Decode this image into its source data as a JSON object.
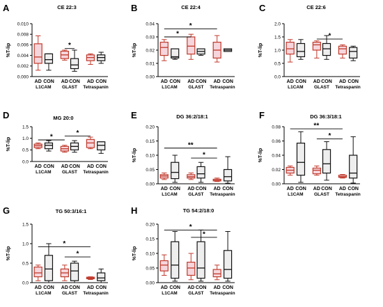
{
  "colors": {
    "ad": "#c0392b",
    "ad_fill": "#f6d6dc",
    "con": "#111111",
    "con_fill": "#eeeeee"
  },
  "chart_data": [
    {
      "panel": "A",
      "type": "box",
      "title": "CE 22:3",
      "ylabel": "%T-lip",
      "yticks": [
        "0.000",
        "0.002",
        "0.004",
        "0.006",
        "0.008",
        "0.010"
      ],
      "ylim": [
        0,
        0.01
      ],
      "xticks": [
        "AD",
        "CON",
        "AD",
        "CON",
        "AD",
        "CON"
      ],
      "groups": [
        "L1CAM",
        "GLAST",
        "Tetraspanin"
      ],
      "boxes": [
        {
          "cond": "AD",
          "min": 0.0012,
          "q1": 0.0025,
          "med": 0.0037,
          "q3": 0.0062,
          "max": 0.0077
        },
        {
          "cond": "CON",
          "min": 0.0012,
          "q1": 0.0025,
          "med": 0.0032,
          "q3": 0.0043,
          "max": 0.0043
        },
        {
          "cond": "AD",
          "min": 0.0031,
          "q1": 0.0034,
          "med": 0.0041,
          "q3": 0.0048,
          "max": 0.005
        },
        {
          "cond": "CON",
          "min": 0.001,
          "q1": 0.0015,
          "med": 0.0022,
          "q3": 0.0034,
          "max": 0.005
        },
        {
          "cond": "AD",
          "min": 0.0023,
          "q1": 0.003,
          "med": 0.0036,
          "q3": 0.0041,
          "max": 0.0043
        },
        {
          "cond": "CON",
          "min": 0.0025,
          "q1": 0.003,
          "med": 0.0036,
          "q3": 0.0041,
          "max": 0.0046
        }
      ],
      "sig": [
        {
          "from": 2,
          "to": 3,
          "label": "*",
          "y": 0.0053
        }
      ]
    },
    {
      "panel": "B",
      "type": "box",
      "title": "CE 22:4",
      "ylabel": "%T-lip",
      "yticks": [
        "0.00",
        "0.01",
        "0.02",
        "0.03",
        "0.04"
      ],
      "ylim": [
        0,
        0.04
      ],
      "xticks": [
        "AD",
        "CON",
        "AD",
        "CON",
        "AD",
        "CON"
      ],
      "groups": [
        "L1CAM",
        "GLAST",
        "Tetraspanin"
      ],
      "boxes": [
        {
          "cond": "AD",
          "min": 0.012,
          "q1": 0.016,
          "med": 0.022,
          "q3": 0.026,
          "max": 0.028
        },
        {
          "cond": "CON",
          "min": 0.013,
          "q1": 0.014,
          "med": 0.015,
          "q3": 0.021,
          "max": 0.021
        },
        {
          "cond": "AD",
          "min": 0.013,
          "q1": 0.017,
          "med": 0.023,
          "q3": 0.03,
          "max": 0.032
        },
        {
          "cond": "CON",
          "min": 0.016,
          "q1": 0.017,
          "med": 0.019,
          "q3": 0.021,
          "max": 0.021
        },
        {
          "cond": "AD",
          "min": 0.011,
          "q1": 0.014,
          "med": 0.02,
          "q3": 0.026,
          "max": 0.031
        },
        {
          "cond": "CON",
          "min": 0.019,
          "q1": 0.019,
          "med": 0.02,
          "q3": 0.021,
          "max": 0.021
        }
      ],
      "sig": [
        {
          "from": 0,
          "to": 2,
          "label": "*",
          "y": 0.03
        },
        {
          "from": 0,
          "to": 4,
          "label": "*",
          "y": 0.036
        }
      ]
    },
    {
      "panel": "C",
      "type": "box",
      "title": "CE 22:6",
      "ylabel": "%T-lip",
      "yticks": [
        "0.0",
        "0.5",
        "1.0",
        "1.5",
        "2.0"
      ],
      "ylim": [
        0,
        2.0
      ],
      "xticks": [
        "AD",
        "CON",
        "AD",
        "CON",
        "AD",
        "CON"
      ],
      "groups": [
        "L1CAM",
        "GLAST",
        "Tetraspanin"
      ],
      "boxes": [
        {
          "cond": "AD",
          "min": 0.55,
          "q1": 0.85,
          "med": 1.05,
          "q3": 1.3,
          "max": 1.4
        },
        {
          "cond": "CON",
          "min": 0.65,
          "q1": 0.75,
          "med": 0.95,
          "q3": 1.25,
          "max": 1.4
        },
        {
          "cond": "AD",
          "min": 0.7,
          "q1": 1.0,
          "med": 1.2,
          "q3": 1.3,
          "max": 1.35
        },
        {
          "cond": "CON",
          "min": 0.65,
          "q1": 0.8,
          "med": 1.05,
          "q3": 1.25,
          "max": 1.55
        },
        {
          "cond": "AD",
          "min": 0.7,
          "q1": 0.85,
          "med": 1.05,
          "q3": 1.15,
          "max": 1.2
        },
        {
          "cond": "CON",
          "min": 0.6,
          "q1": 0.7,
          "med": 0.95,
          "q3": 1.1,
          "max": 1.15
        }
      ],
      "sig": [
        {
          "from": 2,
          "to": 4,
          "label": "*",
          "y": 1.42
        }
      ]
    },
    {
      "panel": "D",
      "type": "box",
      "title": "MG 20:0",
      "ylabel": "%T-lip",
      "yticks": [
        "0.0",
        "0.5",
        "1.0",
        "1.5"
      ],
      "ylim": [
        0,
        1.5
      ],
      "xticks": [
        "AD",
        "CON",
        "AD",
        "CON",
        "AD",
        "CON"
      ],
      "groups": [
        "L1CAM",
        "GLAST",
        "Tetraspanin"
      ],
      "boxes": [
        {
          "cond": "AD",
          "min": 0.55,
          "q1": 0.6,
          "med": 0.68,
          "q3": 0.75,
          "max": 0.8
        },
        {
          "cond": "CON",
          "min": 0.45,
          "q1": 0.55,
          "med": 0.7,
          "q3": 0.8,
          "max": 0.9
        },
        {
          "cond": "AD",
          "min": 0.4,
          "q1": 0.45,
          "med": 0.55,
          "q3": 0.65,
          "max": 0.7
        },
        {
          "cond": "CON",
          "min": 0.4,
          "q1": 0.5,
          "med": 0.65,
          "q3": 0.8,
          "max": 0.9
        },
        {
          "cond": "AD",
          "min": 0.55,
          "q1": 0.6,
          "med": 0.8,
          "q3": 0.95,
          "max": 1.05
        },
        {
          "cond": "CON",
          "min": 0.35,
          "q1": 0.5,
          "med": 0.7,
          "q3": 0.85,
          "max": 0.85
        }
      ],
      "sig": [
        {
          "from": 0,
          "to": 2,
          "label": "*",
          "y": 0.93
        },
        {
          "from": 2,
          "to": 4,
          "label": "*",
          "y": 1.1
        }
      ]
    },
    {
      "panel": "E",
      "type": "box",
      "title": "DG 36:2/18:1",
      "ylabel": "%T-lip",
      "yticks": [
        "0.00",
        "0.05",
        "0.10",
        "0.15",
        "0.20"
      ],
      "ylim": [
        0,
        0.2
      ],
      "xticks": [
        "AD",
        "CON",
        "AD",
        "CON",
        "AD",
        "CON"
      ],
      "groups": [
        "L1CAM",
        "GLAST",
        "Tetraspanin"
      ],
      "boxes": [
        {
          "cond": "AD",
          "min": 0.015,
          "q1": 0.02,
          "med": 0.027,
          "q3": 0.032,
          "max": 0.038
        },
        {
          "cond": "CON",
          "min": 0.005,
          "q1": 0.018,
          "med": 0.04,
          "q3": 0.075,
          "max": 0.1
        },
        {
          "cond": "AD",
          "min": 0.015,
          "q1": 0.02,
          "med": 0.025,
          "q3": 0.032,
          "max": 0.038
        },
        {
          "cond": "CON",
          "min": 0.005,
          "q1": 0.02,
          "med": 0.035,
          "q3": 0.06,
          "max": 0.075
        },
        {
          "cond": "AD",
          "min": 0.008,
          "q1": 0.01,
          "med": 0.012,
          "q3": 0.016,
          "max": 0.02
        },
        {
          "cond": "CON",
          "min": 0.002,
          "q1": 0.01,
          "med": 0.025,
          "q3": 0.05,
          "max": 0.095
        }
      ],
      "sig": [
        {
          "from": 0,
          "to": 4,
          "label": "**",
          "y": 0.125
        },
        {
          "from": 2,
          "to": 4,
          "label": "*",
          "y": 0.09
        }
      ]
    },
    {
      "panel": "F",
      "type": "box",
      "title": "DG 36:3/18:1",
      "ylabel": "%T-lip",
      "yticks": [
        "0.00",
        "0.02",
        "0.04",
        "0.06",
        "0.08"
      ],
      "ylim": [
        0,
        0.08
      ],
      "xticks": [
        "AD",
        "CON",
        "AD",
        "CON",
        "AD",
        "CON"
      ],
      "groups": [
        "L1CAM",
        "GLAST",
        "Tetraspanin"
      ],
      "boxes": [
        {
          "cond": "AD",
          "min": 0.012,
          "q1": 0.015,
          "med": 0.019,
          "q3": 0.023,
          "max": 0.025
        },
        {
          "cond": "CON",
          "min": 0.002,
          "q1": 0.012,
          "med": 0.03,
          "q3": 0.057,
          "max": 0.073
        },
        {
          "cond": "AD",
          "min": 0.012,
          "q1": 0.014,
          "med": 0.019,
          "q3": 0.022,
          "max": 0.025
        },
        {
          "cond": "CON",
          "min": 0.005,
          "q1": 0.015,
          "med": 0.028,
          "q3": 0.048,
          "max": 0.059
        },
        {
          "cond": "AD",
          "min": 0.008,
          "q1": 0.009,
          "med": 0.01,
          "q3": 0.012,
          "max": 0.013
        },
        {
          "cond": "CON",
          "min": 0.001,
          "q1": 0.008,
          "med": 0.015,
          "q3": 0.04,
          "max": 0.066
        }
      ],
      "sig": [
        {
          "from": 0,
          "to": 4,
          "label": "**",
          "y": 0.077
        },
        {
          "from": 2,
          "to": 4,
          "label": "*",
          "y": 0.063
        }
      ]
    },
    {
      "panel": "G",
      "type": "box",
      "title": "TG 50:3/16:1",
      "ylabel": "%T-lip",
      "yticks": [
        "0.0",
        "0.5",
        "1.0",
        "1.5"
      ],
      "ylim": [
        0,
        1.5
      ],
      "xticks": [
        "AD",
        "CON",
        "AD",
        "CON",
        "AD",
        "CON"
      ],
      "groups": [
        "L1CAM",
        "GLAST",
        "Tetraspanin"
      ],
      "boxes": [
        {
          "cond": "AD",
          "min": 0.05,
          "q1": 0.15,
          "med": 0.25,
          "q3": 0.4,
          "max": 0.45
        },
        {
          "cond": "CON",
          "min": 0.0,
          "q1": 0.05,
          "med": 0.35,
          "q3": 0.7,
          "max": 1.0
        },
        {
          "cond": "AD",
          "min": 0.05,
          "q1": 0.15,
          "med": 0.25,
          "q3": 0.35,
          "max": 0.45
        },
        {
          "cond": "CON",
          "min": 0.0,
          "q1": 0.05,
          "med": 0.3,
          "q3": 0.5,
          "max": 0.55
        },
        {
          "cond": "AD",
          "min": 0.08,
          "q1": 0.1,
          "med": 0.12,
          "q3": 0.14,
          "max": 0.15
        },
        {
          "cond": "CON",
          "min": 0.0,
          "q1": 0.05,
          "med": 0.12,
          "q3": 0.25,
          "max": 0.35
        }
      ],
      "sig": [
        {
          "from": 0,
          "to": 4,
          "label": "*",
          "y": 0.92
        },
        {
          "from": 2,
          "to": 4,
          "label": "*",
          "y": 0.66
        }
      ]
    },
    {
      "panel": "H",
      "type": "box",
      "title": "TG 54:2/18:0",
      "ylabel": "%T-lip",
      "yticks": [
        "0.00",
        "0.05",
        "0.10",
        "0.15",
        "0.20"
      ],
      "ylim": [
        0,
        0.2
      ],
      "xticks": [
        "AD",
        "CON",
        "AD",
        "CON",
        "AD",
        "CON"
      ],
      "groups": [
        "L1CAM",
        "GLAST",
        "Tetraspanin"
      ],
      "boxes": [
        {
          "cond": "AD",
          "min": 0.025,
          "q1": 0.04,
          "med": 0.06,
          "q3": 0.075,
          "max": 0.095
        },
        {
          "cond": "CON",
          "min": 0.005,
          "q1": 0.015,
          "med": 0.06,
          "q3": 0.14,
          "max": 0.175
        },
        {
          "cond": "AD",
          "min": 0.01,
          "q1": 0.025,
          "med": 0.05,
          "q3": 0.07,
          "max": 0.1
        },
        {
          "cond": "CON",
          "min": 0.005,
          "q1": 0.015,
          "med": 0.05,
          "q3": 0.14,
          "max": 0.18
        },
        {
          "cond": "AD",
          "min": 0.01,
          "q1": 0.02,
          "med": 0.03,
          "q3": 0.045,
          "max": 0.06
        },
        {
          "cond": "CON",
          "min": 0.005,
          "q1": 0.015,
          "med": 0.045,
          "q3": 0.11,
          "max": 0.175
        }
      ],
      "sig": [
        {
          "from": 0,
          "to": 4,
          "label": "*",
          "y": 0.18
        },
        {
          "from": 2,
          "to": 4,
          "label": "*",
          "y": 0.155
        }
      ]
    }
  ]
}
